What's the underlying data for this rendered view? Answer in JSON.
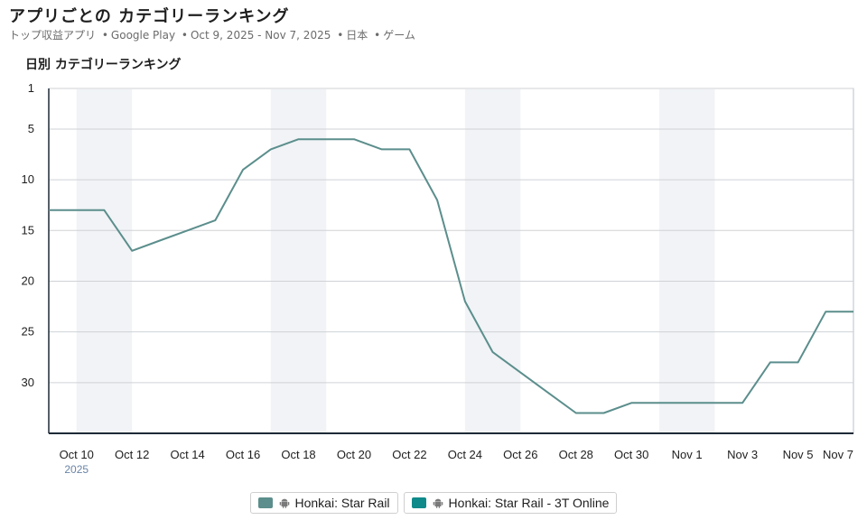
{
  "header": {
    "title": "アプリごとの カテゴリーランキング",
    "subtitle_parts": [
      "トップ収益アプリ",
      "Google Play",
      "Oct 9, 2025 - Nov 7, 2025",
      "日本",
      "ゲーム"
    ],
    "section_title": "日別 カテゴリーランキング"
  },
  "colors": {
    "series1": "#5b8e8c",
    "series2": "#0f8a8a",
    "weekend_band": "#f1f3f6",
    "grid": "#cfd2d6",
    "axis": "#1e2a36"
  },
  "chart_data": {
    "type": "line",
    "y_axis": {
      "label": "",
      "reversed": true,
      "ylim": [
        1,
        35
      ],
      "ticks": [
        1,
        5,
        10,
        15,
        20,
        25,
        30
      ]
    },
    "x_axis": {
      "range": [
        "2025-10-09",
        "2025-11-07"
      ],
      "ticks": [
        {
          "date": "2025-10-10",
          "label": "Oct 10",
          "sublabel": "2025"
        },
        {
          "date": "2025-10-12",
          "label": "Oct 12"
        },
        {
          "date": "2025-10-14",
          "label": "Oct 14"
        },
        {
          "date": "2025-10-16",
          "label": "Oct 16"
        },
        {
          "date": "2025-10-18",
          "label": "Oct 18"
        },
        {
          "date": "2025-10-20",
          "label": "Oct 20"
        },
        {
          "date": "2025-10-22",
          "label": "Oct 22"
        },
        {
          "date": "2025-10-24",
          "label": "Oct 24"
        },
        {
          "date": "2025-10-26",
          "label": "Oct 26"
        },
        {
          "date": "2025-10-28",
          "label": "Oct 28"
        },
        {
          "date": "2025-10-30",
          "label": "Oct 30"
        },
        {
          "date": "2025-11-01",
          "label": "Nov 1"
        },
        {
          "date": "2025-11-03",
          "label": "Nov 3"
        },
        {
          "date": "2025-11-05",
          "label": "Nov 5"
        },
        {
          "date": "2025-11-07",
          "label": "Nov 7"
        }
      ],
      "shaded_bands": [
        [
          "2025-10-10",
          "2025-10-12"
        ],
        [
          "2025-10-17",
          "2025-10-19"
        ],
        [
          "2025-10-24",
          "2025-10-26"
        ],
        [
          "2025-10-31",
          "2025-11-02"
        ]
      ]
    },
    "grid": true,
    "legend_position": "bottom",
    "series": [
      {
        "name": "Honkai: Star Rail",
        "color": "#5b8e8c",
        "points": [
          [
            "2025-10-09",
            13
          ],
          [
            "2025-10-10",
            13
          ],
          [
            "2025-10-11",
            13
          ],
          [
            "2025-10-12",
            17
          ],
          [
            "2025-10-13",
            16
          ],
          [
            "2025-10-14",
            15
          ],
          [
            "2025-10-15",
            14
          ],
          [
            "2025-10-16",
            9
          ],
          [
            "2025-10-17",
            7
          ],
          [
            "2025-10-18",
            6
          ],
          [
            "2025-10-19",
            6
          ],
          [
            "2025-10-20",
            6
          ],
          [
            "2025-10-21",
            7
          ],
          [
            "2025-10-22",
            7
          ],
          [
            "2025-10-23",
            12
          ],
          [
            "2025-10-24",
            22
          ],
          [
            "2025-10-25",
            27
          ],
          [
            "2025-10-26",
            29
          ],
          [
            "2025-10-27",
            31
          ],
          [
            "2025-10-28",
            33
          ],
          [
            "2025-10-29",
            33
          ],
          [
            "2025-10-30",
            32
          ],
          [
            "2025-10-31",
            32
          ],
          [
            "2025-11-01",
            32
          ],
          [
            "2025-11-02",
            32
          ],
          [
            "2025-11-03",
            32
          ],
          [
            "2025-11-04",
            28
          ],
          [
            "2025-11-05",
            28
          ],
          [
            "2025-11-06",
            23
          ],
          [
            "2025-11-07",
            23
          ]
        ]
      },
      {
        "name": "Honkai: Star Rail - 3T Online",
        "color": "#0f8a8a",
        "points": []
      }
    ]
  }
}
